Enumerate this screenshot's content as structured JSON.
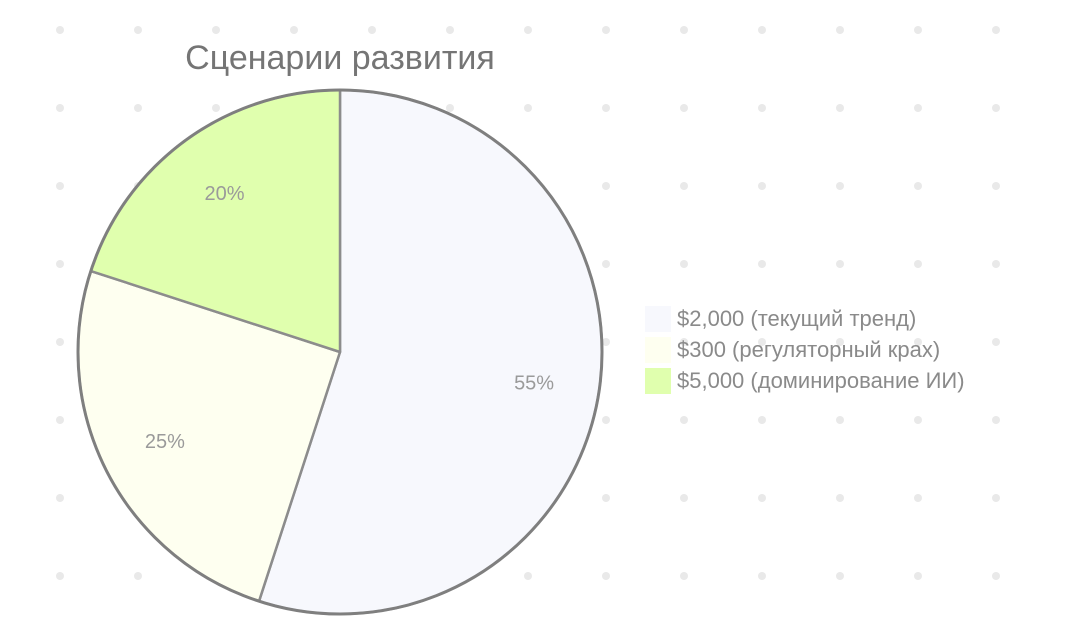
{
  "chart_data": {
    "type": "pie",
    "title": "Сценарии развития",
    "categories": [
      "$2,000 (текущий тренд)",
      "$300 (регуляторный крах)",
      "$5,000 (доминирование ИИ)"
    ],
    "values": [
      55,
      25,
      20
    ],
    "value_labels": [
      "55%",
      "25%",
      "20%"
    ],
    "colors": [
      "#f7f8fd",
      "#fefff0",
      "#e0ffae"
    ],
    "legend_position": "right",
    "start_angle": "top",
    "direction": "clockwise"
  }
}
